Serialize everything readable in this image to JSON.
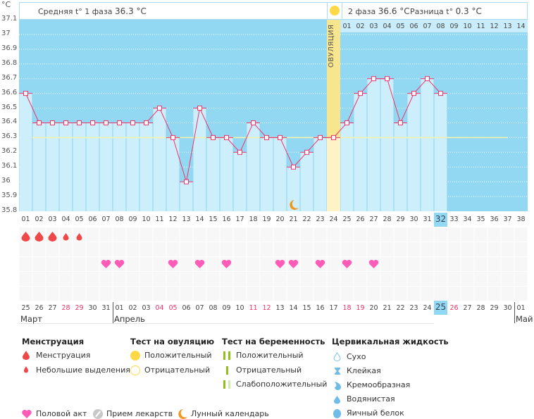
{
  "header": {
    "unit": "°C",
    "phase1_label": "Средняя t° 1 фаза",
    "phase1_value": "36.3 °C",
    "phase2_label": "2 фаза",
    "phase2_value": "36.6 °C",
    "diff_label": "Разница t°",
    "diff_value": "0.3 °C",
    "ovulation_label": "ОВУЛЯЦИЯ"
  },
  "colors": {
    "plot_bg": "#92d8f2",
    "bar": "#cdeefb",
    "line": "#f0336b",
    "ovulation": "#f8e68e",
    "coverline": "#fff3a8",
    "weekend": "#f0336b",
    "heart": "#ff5cb8",
    "drop": "#f04848",
    "moon": "#f2961c"
  },
  "chart_data": {
    "type": "line",
    "ylabel": "°C",
    "ylim": [
      35.8,
      37.1
    ],
    "y_ticks": [
      "37.1",
      "37",
      "36.9",
      "36.8",
      "36.7",
      "36.6",
      "36.5",
      "36.4",
      "36.3",
      "36.2",
      "36.1",
      "36",
      "35.9",
      "35.8"
    ],
    "x_ticks": [
      "01",
      "02",
      "03",
      "04",
      "05",
      "06",
      "07",
      "08",
      "09",
      "10",
      "11",
      "12",
      "13",
      "14",
      "15",
      "16",
      "17",
      "18",
      "19",
      "20",
      "21",
      "22",
      "23",
      "24",
      "25",
      "26",
      "27",
      "28",
      "29",
      "30",
      "31",
      "32",
      "33",
      "34",
      "35",
      "36",
      "37",
      "38"
    ],
    "temperatures": [
      36.6,
      36.4,
      36.4,
      36.4,
      36.4,
      36.4,
      36.4,
      36.4,
      36.4,
      36.4,
      36.5,
      36.3,
      36.0,
      36.5,
      36.3,
      36.3,
      36.2,
      36.4,
      36.3,
      36.3,
      36.1,
      36.2,
      36.3,
      36.3,
      36.4,
      36.6,
      36.7,
      36.7,
      36.4,
      36.6,
      36.7,
      36.6
    ],
    "coverline": 36.3,
    "ovulation_day": 24,
    "current_day": 32,
    "phase2_ticks": [
      "01",
      "02",
      "03",
      "04",
      "05",
      "06",
      "07",
      "08",
      "09",
      "10",
      "11",
      "12",
      "13",
      "14"
    ],
    "moon_day": 21
  },
  "markers": {
    "menstruation_heavy": [
      1,
      2,
      3
    ],
    "menstruation_light": [
      4,
      5
    ],
    "intercourse": [
      7,
      8,
      12,
      14,
      16,
      20,
      21,
      23,
      25,
      27
    ]
  },
  "dates": [
    "25",
    "26",
    "27",
    "28",
    "29",
    "30",
    "31",
    "01",
    "02",
    "03",
    "04",
    "05",
    "06",
    "07",
    "08",
    "09",
    "10",
    "11",
    "12",
    "13",
    "14",
    "15",
    "16",
    "17",
    "18",
    "19",
    "20",
    "21",
    "22",
    "23",
    "24",
    "25",
    "26",
    "27",
    "28",
    "29",
    "30",
    "01"
  ],
  "weekend_indexes": [
    3,
    4,
    10,
    11,
    17,
    18,
    24,
    25,
    32
  ],
  "months": [
    {
      "name": "Март",
      "start": 0
    },
    {
      "name": "Апрель",
      "start": 7
    },
    {
      "name": "Май",
      "start": 37
    }
  ],
  "legend": {
    "menstruation": {
      "title": "Менструация",
      "items": [
        "Менструация",
        "Небольшие выделения"
      ]
    },
    "ovulation_test": {
      "title": "Тест на овуляцию",
      "items": [
        "Положительный",
        "Отрицательный"
      ]
    },
    "pregnancy_test": {
      "title": "Тест на беременность",
      "items": [
        "Положительный",
        "Отрицательный",
        "Слабоположительный"
      ]
    },
    "cervical": {
      "title": "Цервикальная жидкость",
      "items": [
        "Сухо",
        "Клейкая",
        "Кремообразная",
        "Водянистая",
        "Яичный белок"
      ]
    },
    "other": [
      "Половой акт",
      "Прием лекарств",
      "Лунный календарь"
    ]
  }
}
